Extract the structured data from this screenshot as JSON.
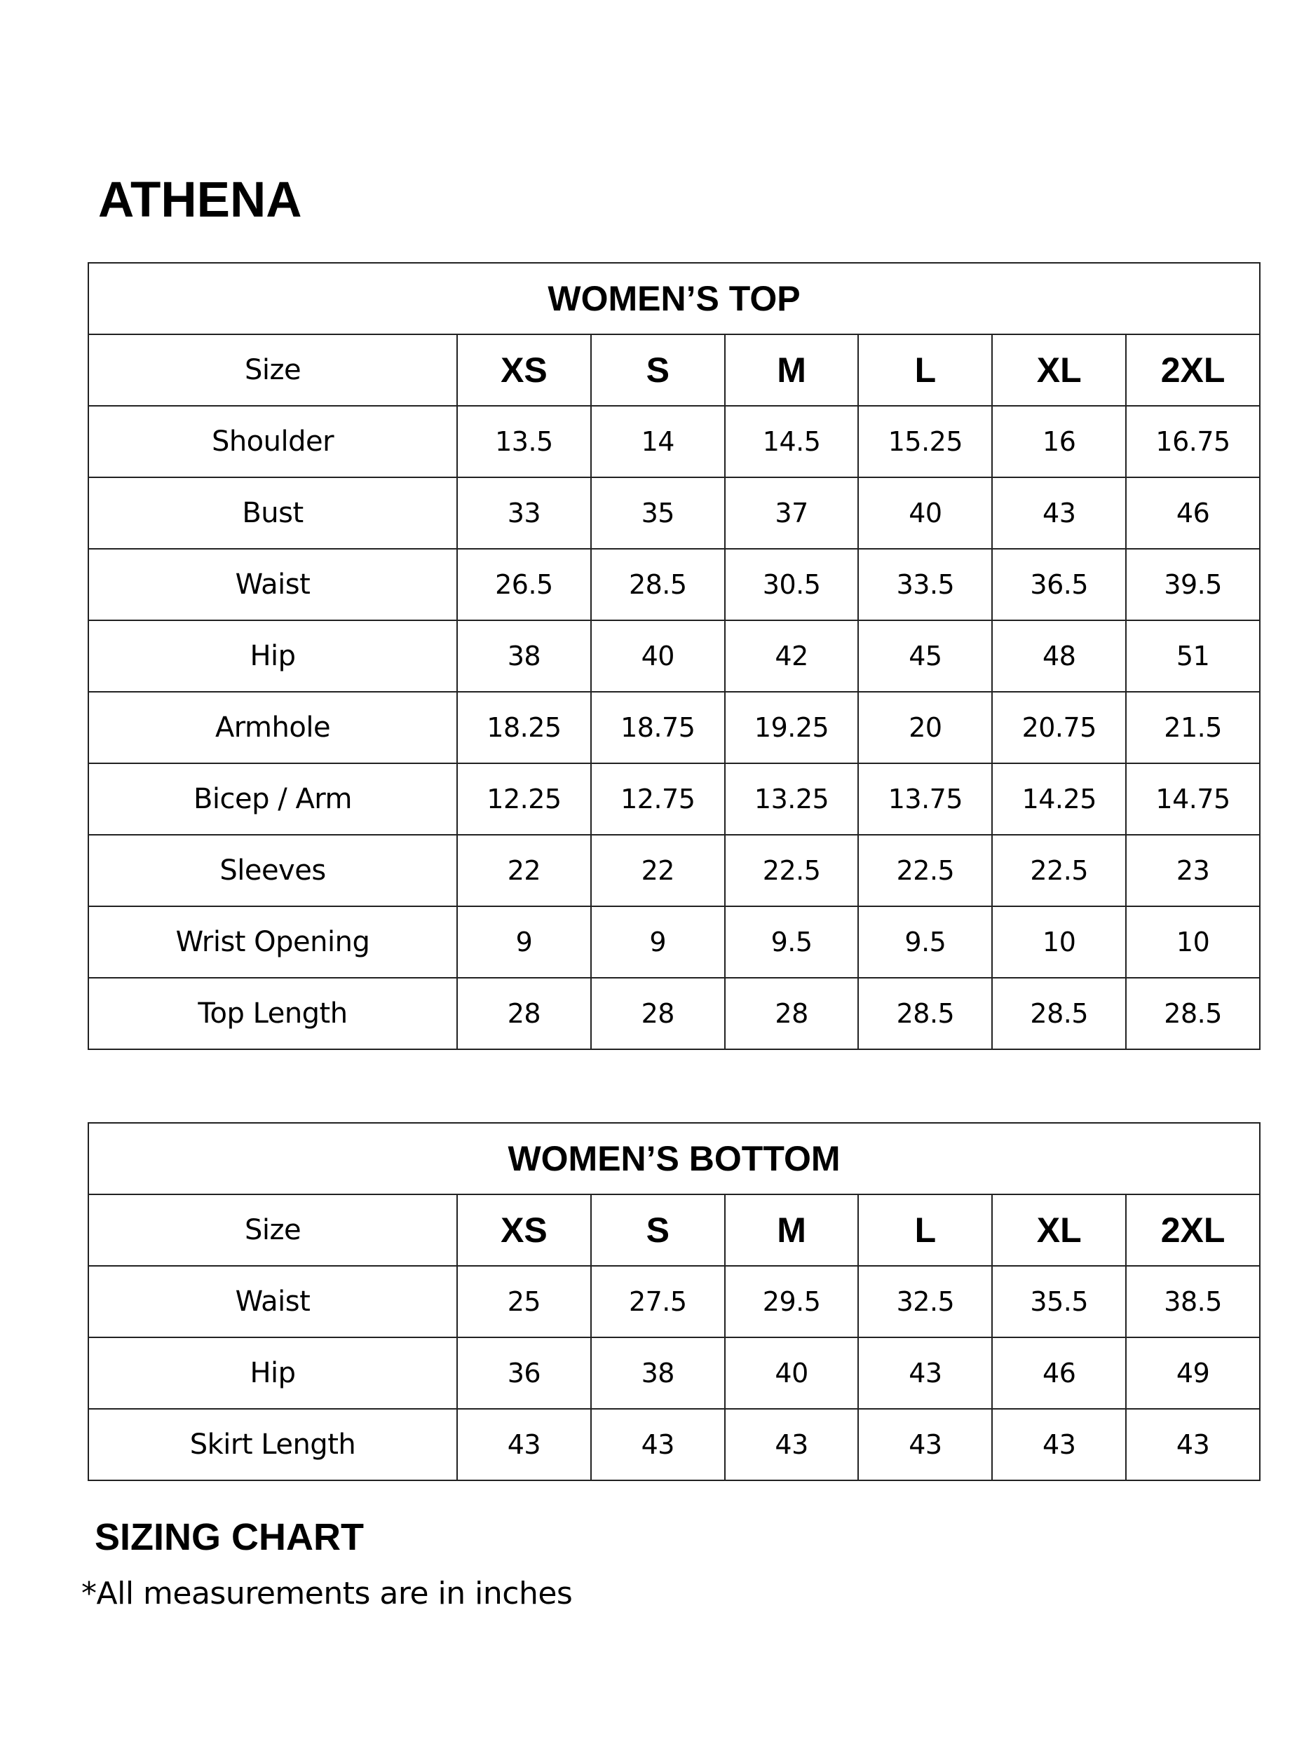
{
  "brand": "ATHENA",
  "sizes": [
    "XS",
    "S",
    "M",
    "L",
    "XL",
    "2XL"
  ],
  "size_label": "Size",
  "top_table": {
    "title": "WOMEN’S TOP",
    "rows": [
      {
        "label": "Shoulder",
        "values": [
          "13.5",
          "14",
          "14.5",
          "15.25",
          "16",
          "16.75"
        ]
      },
      {
        "label": "Bust",
        "values": [
          "33",
          "35",
          "37",
          "40",
          "43",
          "46"
        ]
      },
      {
        "label": "Waist",
        "values": [
          "26.5",
          "28.5",
          "30.5",
          "33.5",
          "36.5",
          "39.5"
        ]
      },
      {
        "label": "Hip",
        "values": [
          "38",
          "40",
          "42",
          "45",
          "48",
          "51"
        ]
      },
      {
        "label": "Armhole",
        "values": [
          "18.25",
          "18.75",
          "19.25",
          "20",
          "20.75",
          "21.5"
        ]
      },
      {
        "label": "Bicep / Arm",
        "values": [
          "12.25",
          "12.75",
          "13.25",
          "13.75",
          "14.25",
          "14.75"
        ]
      },
      {
        "label": "Sleeves",
        "values": [
          "22",
          "22",
          "22.5",
          "22.5",
          "22.5",
          "23"
        ]
      },
      {
        "label": "Wrist Opening",
        "values": [
          "9",
          "9",
          "9.5",
          "9.5",
          "10",
          "10"
        ]
      },
      {
        "label": "Top Length",
        "values": [
          "28",
          "28",
          "28",
          "28.5",
          "28.5",
          "28.5"
        ]
      }
    ]
  },
  "bottom_table": {
    "title": "WOMEN’S BOTTOM",
    "rows": [
      {
        "label": "Waist",
        "values": [
          "25",
          "27.5",
          "29.5",
          "32.5",
          "35.5",
          "38.5"
        ]
      },
      {
        "label": "Hip",
        "values": [
          "36",
          "38",
          "40",
          "43",
          "46",
          "49"
        ]
      },
      {
        "label": "Skirt Length",
        "values": [
          "43",
          "43",
          "43",
          "43",
          "43",
          "43"
        ]
      }
    ]
  },
  "footer": {
    "title": "SIZING CHART",
    "note": "*All measurements are in inches"
  }
}
